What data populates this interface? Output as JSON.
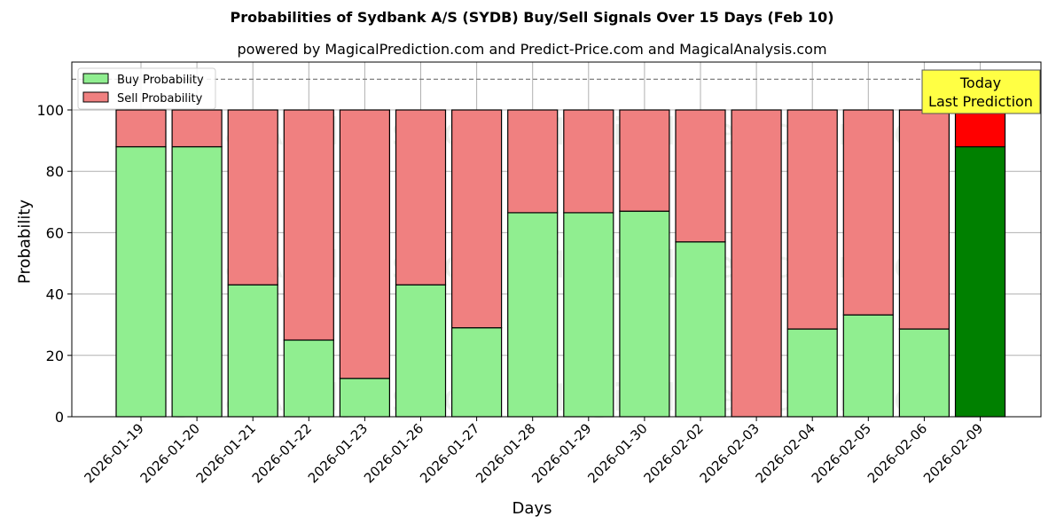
{
  "header": {
    "title": "Probabilities of Sydbank A/S (SYDB) Buy/Sell Signals Over 15 Days (Feb 10)",
    "subtitle": "powered by MagicalPrediction.com and Predict-Price.com and MagicalAnalysis.com"
  },
  "axes": {
    "xlabel": "Days",
    "ylabel": "Probability",
    "yticks": [
      "0",
      "20",
      "40",
      "60",
      "80",
      "100"
    ]
  },
  "legend": {
    "buy_label": "Buy Probability",
    "sell_label": "Sell Probability"
  },
  "annotation": {
    "line1": "Today",
    "line2": "Last Prediction"
  },
  "watermarks": [
    "MagicalAnalysis.com",
    "MagicalPrediction.com"
  ],
  "colors": {
    "buy": "#90ee90",
    "sell": "#f08080",
    "buy_today": "#008000",
    "sell_today": "#ff0000",
    "annotation_bg": "#ffff44"
  },
  "chart_data": {
    "type": "bar",
    "stacked": true,
    "title": "Probabilities of Sydbank A/S (SYDB) Buy/Sell Signals Over 15 Days (Feb 10)",
    "subtitle": "powered by MagicalPrediction.com and Predict-Price.com and MagicalAnalysis.com",
    "xlabel": "Days",
    "ylabel": "Probability",
    "ylim": [
      0,
      115
    ],
    "yticks": [
      0,
      20,
      40,
      60,
      80,
      100
    ],
    "grid": true,
    "legend_position": "upper left",
    "reference_line": {
      "y": 110,
      "style": "dashed"
    },
    "categories": [
      "2026-01-19",
      "2026-01-20",
      "2026-01-21",
      "2026-01-22",
      "2026-01-23",
      "2026-01-26",
      "2026-01-27",
      "2026-01-28",
      "2026-01-29",
      "2026-01-30",
      "2026-02-02",
      "2026-02-03",
      "2026-02-04",
      "2026-02-05",
      "2026-02-06",
      "2026-02-09"
    ],
    "series": [
      {
        "name": "Buy Probability",
        "values": [
          88,
          88,
          43,
          25,
          12.5,
          43,
          29,
          66.5,
          66.5,
          67,
          57,
          0,
          28.6,
          33.2,
          28.6,
          88
        ]
      },
      {
        "name": "Sell Probability",
        "values": [
          12,
          12,
          57,
          75,
          87.5,
          57,
          71,
          33.5,
          33.5,
          33,
          43,
          100,
          71.4,
          66.8,
          71.4,
          12
        ]
      }
    ],
    "annotations": [
      {
        "text": "Today\nLast Prediction",
        "category": "2026-02-09"
      }
    ]
  }
}
